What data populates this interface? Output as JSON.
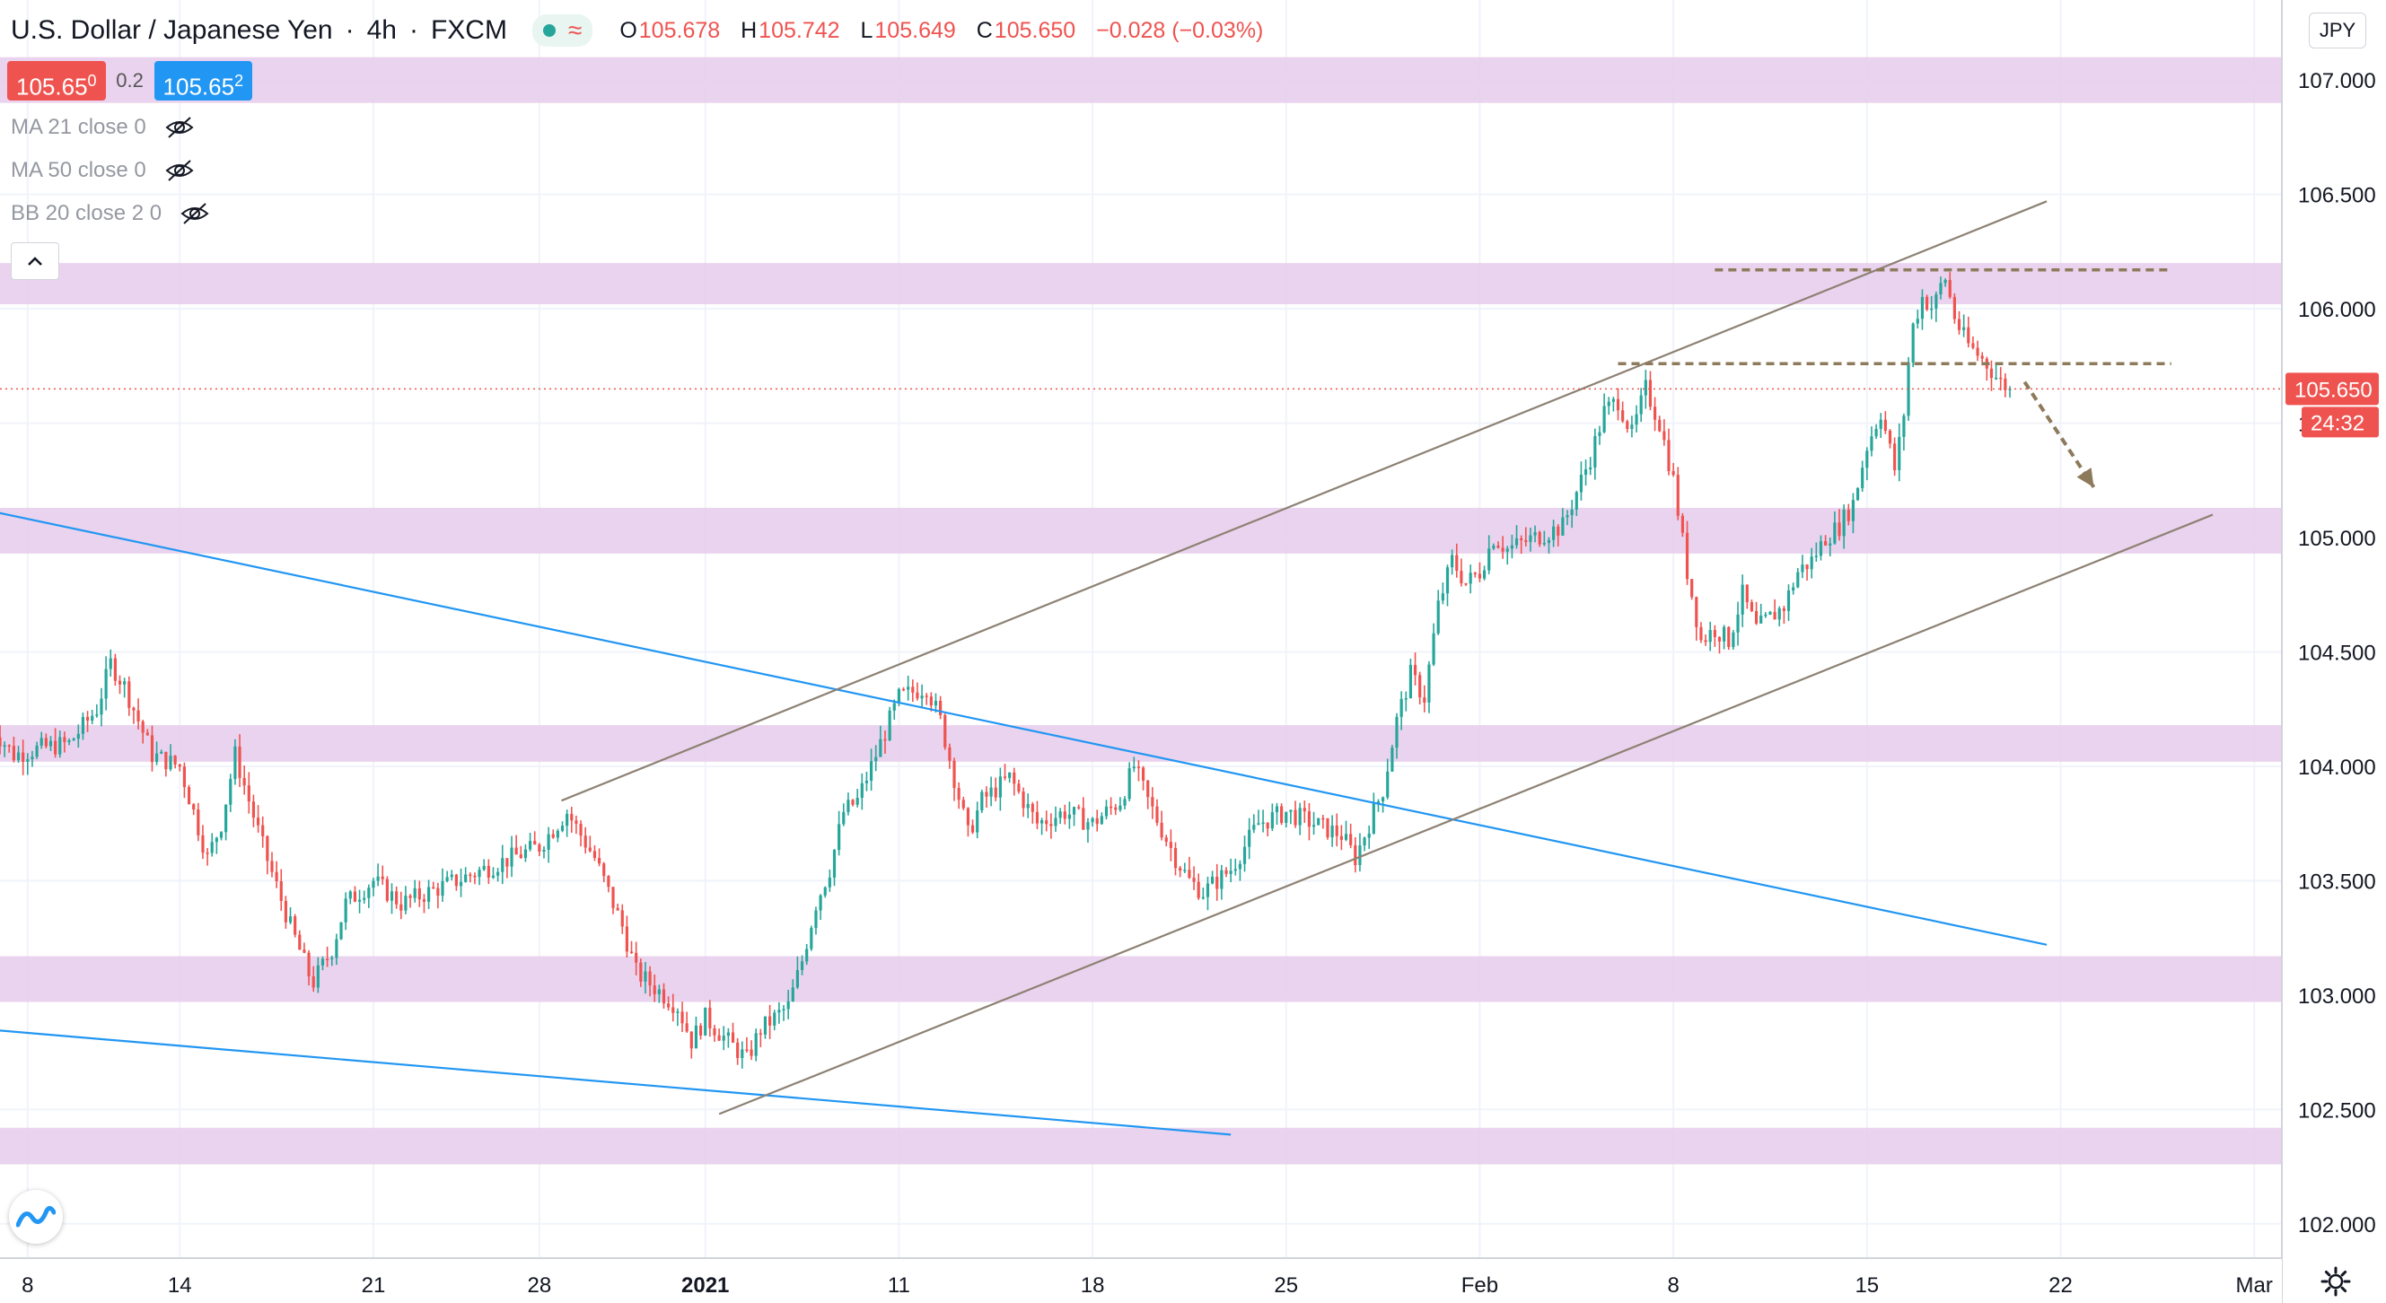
{
  "header": {
    "symbol": "U.S. Dollar / Japanese Yen",
    "timeframe": "4h",
    "source": "FXCM",
    "open_label": "O",
    "open": "105.678",
    "high_label": "H",
    "high": "105.742",
    "low_label": "L",
    "low": "105.649",
    "close_label": "C",
    "close": "105.650",
    "change": "−0.028 (−0.03%)"
  },
  "quote": {
    "sell": "105.65",
    "sell_sup": "0",
    "spread": "0.2",
    "buy": "105.65",
    "buy_sup": "2"
  },
  "indicators": [
    {
      "label": "MA 21 close 0",
      "icon": "eye-off-icon"
    },
    {
      "label": "MA 50 close 0",
      "icon": "eye-off-icon"
    },
    {
      "label": "BB 20 close 2 0",
      "icon": "eye-off-icon"
    }
  ],
  "currency": "JPY",
  "price_label": {
    "value": "105.650",
    "countdown": "24:32",
    "color": "#ef5350"
  },
  "colors": {
    "up": "#26a69a",
    "down": "#ef5350",
    "zone": "#e6cbeb",
    "trend_blue": "#2196f3",
    "channel": "#8d8173",
    "level": "#8d7a5b"
  },
  "chart_data": {
    "type": "candlestick",
    "x_ticks": [
      {
        "label": "8",
        "x": 0.5
      },
      {
        "label": "14",
        "x": 6
      },
      {
        "label": "21",
        "x": 13
      },
      {
        "label": "28",
        "x": 19
      },
      {
        "label": "2021",
        "x": 25
      },
      {
        "label": "11",
        "x": 32
      },
      {
        "label": "18",
        "x": 39
      },
      {
        "label": "25",
        "x": 46
      },
      {
        "label": "Feb",
        "x": 53
      },
      {
        "label": "8",
        "x": 60
      },
      {
        "label": "15",
        "x": 67
      },
      {
        "label": "22",
        "x": 74
      },
      {
        "label": "Mar",
        "x": 81
      }
    ],
    "x_range": [
      -0.5,
      82
    ],
    "y_range": [
      101.85,
      107.35
    ],
    "y_ticks": [
      "102.000",
      "102.500",
      "103.000",
      "103.500",
      "104.000",
      "104.500",
      "105.000",
      "105.500",
      "106.000",
      "106.500",
      "107.000"
    ],
    "current_price": 105.65,
    "zones": [
      [
        106.9,
        107.1
      ],
      [
        106.02,
        106.2
      ],
      [
        104.93,
        105.13
      ],
      [
        104.02,
        104.18
      ],
      [
        102.97,
        103.17
      ],
      [
        102.26,
        102.42
      ]
    ],
    "lines": [
      {
        "kind": "trend",
        "color": "blue",
        "from": [
          -1,
          105.12
        ],
        "to": [
          73.5,
          103.22
        ]
      },
      {
        "kind": "trend",
        "color": "blue",
        "from": [
          -1,
          102.85
        ],
        "to": [
          44,
          102.39
        ]
      },
      {
        "kind": "channel",
        "from": [
          25.5,
          102.48
        ],
        "to": [
          79.5,
          105.1
        ]
      },
      {
        "kind": "channel",
        "from": [
          19.8,
          103.85
        ],
        "to": [
          73.5,
          106.47
        ]
      }
    ],
    "levels": [
      {
        "from": [
          61.5,
          106.17
        ],
        "to": [
          78,
          106.17
        ]
      },
      {
        "from": [
          58,
          105.76
        ],
        "to": [
          78,
          105.76
        ]
      }
    ],
    "arrow": {
      "from": [
        72.7,
        105.68
      ],
      "to": [
        75.2,
        105.22
      ]
    },
    "close_path": [
      [
        -1,
        104.2
      ],
      [
        0,
        104.05
      ],
      [
        1,
        104.08
      ],
      [
        2,
        104.1
      ],
      [
        3,
        104.25
      ],
      [
        3.5,
        104.45
      ],
      [
        4,
        104.35
      ],
      [
        5,
        104.05
      ],
      [
        6,
        104.0
      ],
      [
        7,
        103.6
      ],
      [
        7.5,
        103.75
      ],
      [
        8,
        104.05
      ],
      [
        8.5,
        103.85
      ],
      [
        9,
        103.65
      ],
      [
        10,
        103.3
      ],
      [
        10.8,
        103.05
      ],
      [
        11.5,
        103.2
      ],
      [
        12,
        103.4
      ],
      [
        13,
        103.5
      ],
      [
        14,
        103.4
      ],
      [
        15,
        103.45
      ],
      [
        16,
        103.5
      ],
      [
        17,
        103.55
      ],
      [
        18,
        103.6
      ],
      [
        19,
        103.65
      ],
      [
        20,
        103.8
      ],
      [
        21,
        103.6
      ],
      [
        22,
        103.3
      ],
      [
        22.5,
        103.1
      ],
      [
        23,
        103.05
      ],
      [
        24,
        102.95
      ],
      [
        24.5,
        102.8
      ],
      [
        25,
        102.9
      ],
      [
        25.8,
        102.8
      ],
      [
        26.5,
        102.72
      ],
      [
        27,
        102.85
      ],
      [
        28,
        102.95
      ],
      [
        28.5,
        103.15
      ],
      [
        29,
        103.4
      ],
      [
        29.5,
        103.55
      ],
      [
        30,
        103.8
      ],
      [
        30.5,
        103.85
      ],
      [
        31,
        104.0
      ],
      [
        31.5,
        104.15
      ],
      [
        32,
        104.3
      ],
      [
        33,
        104.35
      ],
      [
        33.5,
        104.2
      ],
      [
        34,
        103.95
      ],
      [
        34.5,
        103.7
      ],
      [
        35,
        103.85
      ],
      [
        36,
        103.95
      ],
      [
        37,
        103.75
      ],
      [
        38,
        103.8
      ],
      [
        39,
        103.75
      ],
      [
        40,
        103.85
      ],
      [
        40.5,
        104.0
      ],
      [
        41,
        103.85
      ],
      [
        42,
        103.6
      ],
      [
        42.5,
        103.5
      ],
      [
        43,
        103.45
      ],
      [
        44,
        103.55
      ],
      [
        45,
        103.75
      ],
      [
        46,
        103.8
      ],
      [
        47,
        103.75
      ],
      [
        48,
        103.7
      ],
      [
        48.5,
        103.6
      ],
      [
        49,
        103.75
      ],
      [
        49.5,
        103.9
      ],
      [
        50,
        104.2
      ],
      [
        50.5,
        104.4
      ],
      [
        51,
        104.3
      ],
      [
        51.5,
        104.7
      ],
      [
        52,
        104.9
      ],
      [
        52.5,
        104.8
      ],
      [
        53,
        104.85
      ],
      [
        53.5,
        105.0
      ],
      [
        54,
        104.95
      ],
      [
        55,
        105.0
      ],
      [
        56,
        105.05
      ],
      [
        56.5,
        105.2
      ],
      [
        57,
        105.35
      ],
      [
        57.5,
        105.55
      ],
      [
        58,
        105.6
      ],
      [
        58.5,
        105.45
      ],
      [
        59,
        105.65
      ],
      [
        59.5,
        105.5
      ],
      [
        60,
        105.25
      ],
      [
        60.5,
        104.85
      ],
      [
        61,
        104.55
      ],
      [
        61.5,
        104.6
      ],
      [
        62,
        104.55
      ],
      [
        62.5,
        104.75
      ],
      [
        63,
        104.6
      ],
      [
        63.5,
        104.65
      ],
      [
        64,
        104.7
      ],
      [
        64.5,
        104.85
      ],
      [
        65,
        104.9
      ],
      [
        65.5,
        105.0
      ],
      [
        66,
        105.05
      ],
      [
        66.5,
        105.15
      ],
      [
        67,
        105.4
      ],
      [
        67.5,
        105.55
      ],
      [
        68,
        105.3
      ],
      [
        68.3,
        105.5
      ],
      [
        68.6,
        105.9
      ],
      [
        69,
        106.05
      ],
      [
        69.4,
        106.0
      ],
      [
        69.8,
        106.15
      ],
      [
        70.2,
        105.95
      ],
      [
        70.6,
        105.85
      ],
      [
        71,
        105.8
      ],
      [
        71.4,
        105.75
      ],
      [
        71.8,
        105.68
      ],
      [
        72.2,
        105.65
      ]
    ]
  }
}
